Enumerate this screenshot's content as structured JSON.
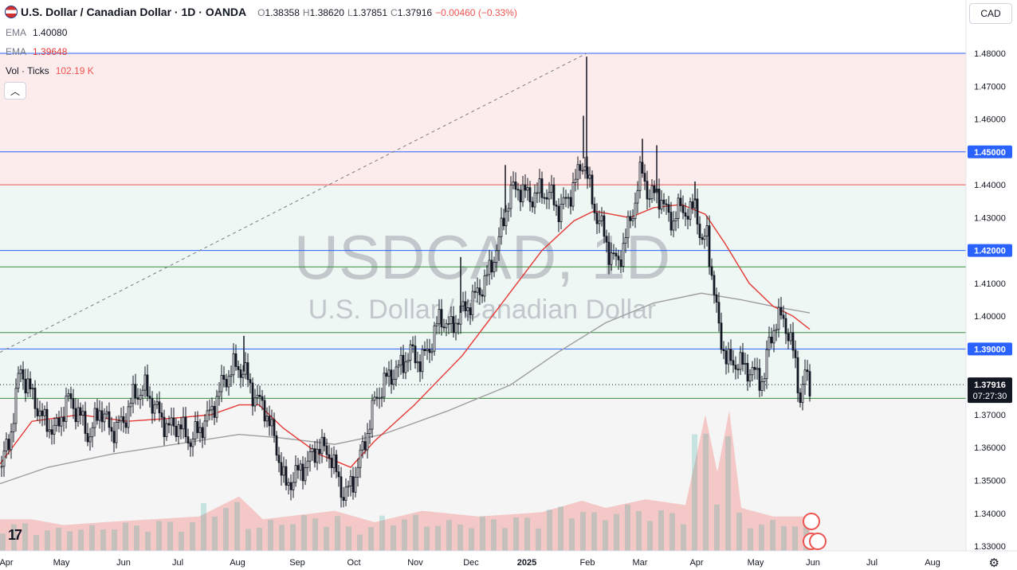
{
  "header": {
    "symbol": "U.S. Dollar / Canadian Dollar · 1D · OANDA",
    "ohlc": [
      {
        "k": "O",
        "v": "1.38358"
      },
      {
        "k": "H",
        "v": "1.38620"
      },
      {
        "k": "L",
        "v": "1.37851"
      },
      {
        "k": "C",
        "v": "1.37916"
      },
      {
        "k": "",
        "v": "−0.00460 (−0.33%)"
      }
    ]
  },
  "indicators": {
    "ema1_label": "EMA",
    "ema1_value": "1.40080",
    "ema2_label": "EMA",
    "ema2_value": "1.39648",
    "vol_label": "Vol · Ticks",
    "vol_value": "102.19 K"
  },
  "watermark": {
    "symbol": "USDCAD, 1D",
    "name": "U.S. Dollar / Canadian Dollar"
  },
  "currency_button": "CAD",
  "price_tag": {
    "price": "1.37916",
    "countdown": "07:27:30"
  },
  "colors": {
    "up": "#26a69a",
    "down": "#ef5350",
    "candle": "#131722",
    "ema_fast": "#e53935",
    "ema_slow": "#9e9e9e",
    "resistance_fill": "#fdecec",
    "support_fill": "#eef7f4",
    "level_blue": "#2962ff",
    "level_green": "#388e3c"
  },
  "chart_data": {
    "type": "candlestick",
    "ylim": [
      1.325,
      1.485
    ],
    "y_ticks": [
      "1.48000",
      "1.47000",
      "1.46000",
      "1.45000",
      "1.44000",
      "1.43000",
      "1.42000",
      "1.41000",
      "1.40000",
      "1.39000",
      "1.38000",
      "1.37000",
      "1.36000",
      "1.35000",
      "1.34000",
      "1.33000"
    ],
    "x_labels": [
      "Apr",
      "May",
      "Jun",
      "Jul",
      "Aug",
      "Sep",
      "Oct",
      "Nov",
      "Dec",
      "2025",
      "Feb",
      "Mar",
      "Apr",
      "May",
      "Jun",
      "Jul",
      "Aug"
    ],
    "highlighted_levels": [
      "1.45000",
      "1.42000",
      "1.39000"
    ],
    "levels": [
      {
        "price": 1.48,
        "color": "level_blue"
      },
      {
        "price": 1.45,
        "color": "level_blue"
      },
      {
        "price": 1.44,
        "color": "down"
      },
      {
        "price": 1.42,
        "color": "level_blue"
      },
      {
        "price": 1.415,
        "color": "level_green"
      },
      {
        "price": 1.395,
        "color": "level_green"
      },
      {
        "price": 1.39,
        "color": "level_blue"
      },
      {
        "price": 1.375,
        "color": "level_green"
      }
    ],
    "zones": [
      {
        "from": 1.44,
        "to": 1.48,
        "fill": "resistance_fill"
      },
      {
        "from": 1.375,
        "to": 1.44,
        "fill": "support_fill"
      }
    ],
    "close_path": [
      [
        0,
        1.354
      ],
      [
        12,
        1.362
      ],
      [
        25,
        1.384
      ],
      [
        40,
        1.376
      ],
      [
        55,
        1.368
      ],
      [
        70,
        1.365
      ],
      [
        85,
        1.375
      ],
      [
        100,
        1.37
      ],
      [
        112,
        1.363
      ],
      [
        125,
        1.372
      ],
      [
        140,
        1.365
      ],
      [
        155,
        1.368
      ],
      [
        168,
        1.376
      ],
      [
        182,
        1.378
      ],
      [
        195,
        1.372
      ],
      [
        210,
        1.366
      ],
      [
        225,
        1.367
      ],
      [
        238,
        1.362
      ],
      [
        252,
        1.366
      ],
      [
        265,
        1.371
      ],
      [
        280,
        1.38
      ],
      [
        295,
        1.385
      ],
      [
        307,
        1.383
      ],
      [
        318,
        1.376
      ],
      [
        332,
        1.372
      ],
      [
        345,
        1.362
      ],
      [
        358,
        1.348
      ],
      [
        372,
        1.352
      ],
      [
        385,
        1.355
      ],
      [
        398,
        1.36
      ],
      [
        412,
        1.359
      ],
      [
        425,
        1.35
      ],
      [
        432,
        1.345
      ],
      [
        445,
        1.351
      ],
      [
        458,
        1.362
      ],
      [
        470,
        1.374
      ],
      [
        485,
        1.381
      ],
      [
        500,
        1.384
      ],
      [
        515,
        1.389
      ],
      [
        528,
        1.386
      ],
      [
        540,
        1.391
      ],
      [
        552,
        1.4
      ],
      [
        565,
        1.396
      ],
      [
        578,
        1.401
      ],
      [
        590,
        1.404
      ],
      [
        602,
        1.408
      ],
      [
        615,
        1.414
      ],
      [
        628,
        1.425
      ],
      [
        640,
        1.438
      ],
      [
        652,
        1.439
      ],
      [
        665,
        1.436
      ],
      [
        678,
        1.438
      ],
      [
        690,
        1.437
      ],
      [
        702,
        1.432
      ],
      [
        715,
        1.437
      ],
      [
        725,
        1.443
      ],
      [
        732,
        1.448
      ],
      [
        738,
        1.441
      ],
      [
        745,
        1.433
      ],
      [
        755,
        1.427
      ],
      [
        765,
        1.419
      ],
      [
        775,
        1.416
      ],
      [
        785,
        1.424
      ],
      [
        795,
        1.433
      ],
      [
        805,
        1.445
      ],
      [
        815,
        1.436
      ],
      [
        825,
        1.438
      ],
      [
        835,
        1.432
      ],
      [
        845,
        1.429
      ],
      [
        855,
        1.434
      ],
      [
        865,
        1.43
      ],
      [
        873,
        1.436
      ],
      [
        880,
        1.42
      ],
      [
        887,
        1.426
      ],
      [
        895,
        1.408
      ],
      [
        903,
        1.395
      ],
      [
        912,
        1.386
      ],
      [
        922,
        1.386
      ],
      [
        932,
        1.385
      ],
      [
        942,
        1.383
      ],
      [
        950,
        1.382
      ],
      [
        958,
        1.38
      ],
      [
        965,
        1.392
      ],
      [
        973,
        1.398
      ],
      [
        982,
        1.4
      ],
      [
        990,
        1.394
      ],
      [
        997,
        1.387
      ],
      [
        1004,
        1.375
      ],
      [
        1010,
        1.382
      ],
      [
        1016,
        1.379
      ]
    ],
    "spikes": [
      {
        "x": 306,
        "high": 1.394
      },
      {
        "x": 736,
        "high": 1.479
      },
      {
        "x": 732,
        "high": 1.461
      },
      {
        "x": 806,
        "high": 1.454
      },
      {
        "x": 824,
        "high": 1.452
      },
      {
        "x": 872,
        "high": 1.441
      },
      {
        "x": 578,
        "high": 1.418
      },
      {
        "x": 634,
        "high": 1.446
      }
    ],
    "ema_fast": [
      [
        0,
        1.355
      ],
      [
        40,
        1.368
      ],
      [
        100,
        1.37
      ],
      [
        160,
        1.368
      ],
      [
        220,
        1.369
      ],
      [
        265,
        1.37
      ],
      [
        300,
        1.373
      ],
      [
        325,
        1.373
      ],
      [
        355,
        1.366
      ],
      [
        400,
        1.358
      ],
      [
        440,
        1.354
      ],
      [
        470,
        1.362
      ],
      [
        520,
        1.373
      ],
      [
        580,
        1.388
      ],
      [
        630,
        1.404
      ],
      [
        680,
        1.42
      ],
      [
        720,
        1.429
      ],
      [
        745,
        1.432
      ],
      [
        790,
        1.43
      ],
      [
        820,
        1.433
      ],
      [
        855,
        1.434
      ],
      [
        885,
        1.431
      ],
      [
        910,
        1.422
      ],
      [
        940,
        1.41
      ],
      [
        970,
        1.403
      ],
      [
        995,
        1.4
      ],
      [
        1016,
        1.396
      ]
    ],
    "ema_slow": [
      [
        0,
        1.349
      ],
      [
        60,
        1.354
      ],
      [
        140,
        1.358
      ],
      [
        220,
        1.361
      ],
      [
        300,
        1.364
      ],
      [
        350,
        1.363
      ],
      [
        420,
        1.361
      ],
      [
        480,
        1.364
      ],
      [
        560,
        1.371
      ],
      [
        640,
        1.379
      ],
      [
        700,
        1.389
      ],
      [
        760,
        1.398
      ],
      [
        820,
        1.404
      ],
      [
        880,
        1.407
      ],
      [
        930,
        1.405
      ],
      [
        970,
        1.403
      ],
      [
        1016,
        1.401
      ]
    ],
    "volume_path": [
      [
        0,
        0.22
      ],
      [
        40,
        0.22
      ],
      [
        80,
        0.18
      ],
      [
        130,
        0.2
      ],
      [
        190,
        0.22
      ],
      [
        250,
        0.24
      ],
      [
        300,
        0.38
      ],
      [
        330,
        0.22
      ],
      [
        360,
        0.24
      ],
      [
        420,
        0.28
      ],
      [
        470,
        0.2
      ],
      [
        530,
        0.28
      ],
      [
        600,
        0.24
      ],
      [
        680,
        0.27
      ],
      [
        730,
        0.35
      ],
      [
        760,
        0.3
      ],
      [
        810,
        0.36
      ],
      [
        860,
        0.32
      ],
      [
        885,
        0.95
      ],
      [
        900,
        0.55
      ],
      [
        915,
        0.98
      ],
      [
        930,
        0.3
      ],
      [
        970,
        0.24
      ],
      [
        1016,
        0.24
      ]
    ],
    "diagonal": {
      "from": [
        0,
        1.389
      ],
      "to": [
        736,
        1.48
      ]
    }
  }
}
